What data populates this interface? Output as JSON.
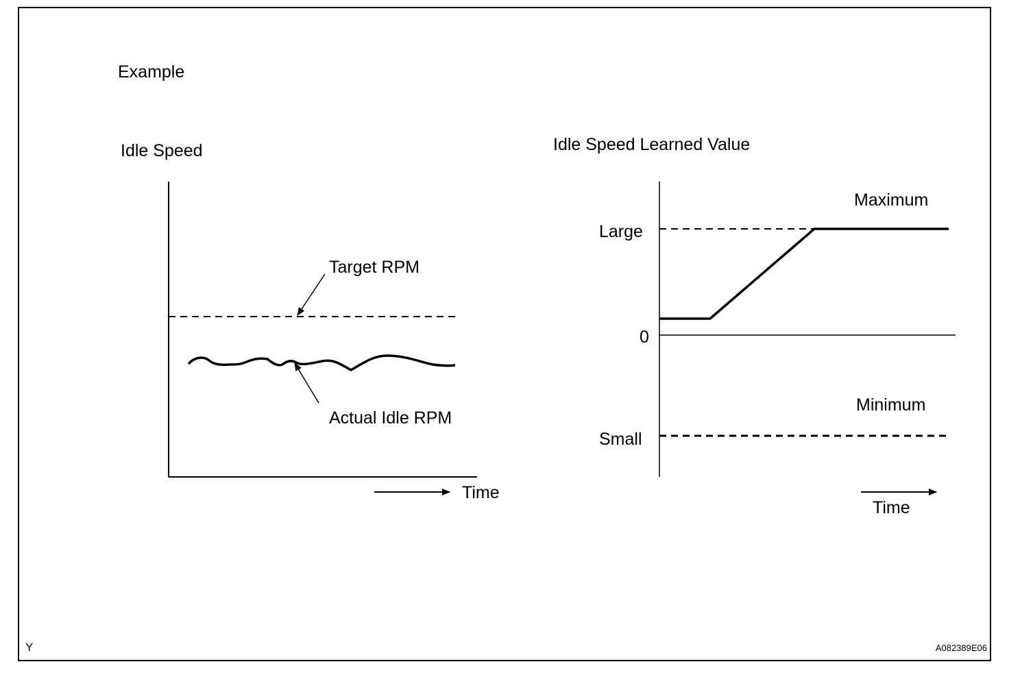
{
  "header": {
    "example_label": "Example"
  },
  "left_chart": {
    "title": "Idle Speed",
    "target_label": "Target RPM",
    "actual_label": "Actual Idle RPM",
    "time_label": "Time"
  },
  "right_chart": {
    "title": "Idle Speed Learned Value",
    "maximum_label": "Maximum",
    "minimum_label": "Minimum",
    "large_label": "Large",
    "zero_label": "0",
    "small_label": "Small",
    "time_label": "Time"
  },
  "footer": {
    "left_code": "Y",
    "right_code": "A082389E06"
  }
}
